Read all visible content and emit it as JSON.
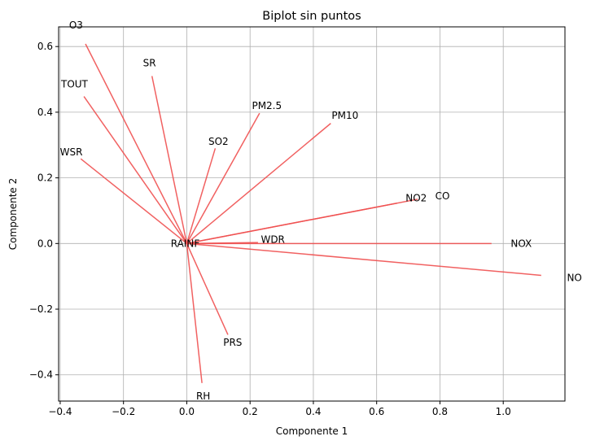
{
  "chart_data": {
    "type": "biplot",
    "title": "Biplot sin puntos",
    "xlabel": "Componente 1",
    "ylabel": "Componente 2",
    "xlim": [
      -0.405,
      1.195
    ],
    "ylim": [
      -0.48,
      0.66
    ],
    "xticks": [
      -0.4,
      -0.2,
      0.0,
      0.2,
      0.4,
      0.6,
      0.8,
      1.0
    ],
    "yticks": [
      -0.4,
      -0.2,
      0.0,
      0.2,
      0.4,
      0.6
    ],
    "xtick_labels": [
      "−0.4",
      "−0.2",
      "0.0",
      "0.2",
      "0.4",
      "0.6",
      "0.8",
      "1.0"
    ],
    "ytick_labels": [
      "−0.4",
      "−0.2",
      "0.0",
      "0.2",
      "0.4",
      "0.6"
    ],
    "grid": true,
    "arrow_color": "#f05050",
    "vectors": [
      {
        "name": "O3",
        "x": -0.32,
        "y": 0.608,
        "lx": -0.35,
        "ly": 0.665
      },
      {
        "name": "SR",
        "x": -0.11,
        "y": 0.51,
        "lx": -0.118,
        "ly": 0.55
      },
      {
        "name": "TOUT",
        "x": -0.325,
        "y": 0.448,
        "lx": -0.355,
        "ly": 0.485
      },
      {
        "name": "PM2.5",
        "x": 0.23,
        "y": 0.397,
        "lx": 0.253,
        "ly": 0.42
      },
      {
        "name": "PM10",
        "x": 0.455,
        "y": 0.366,
        "lx": 0.5,
        "ly": 0.39
      },
      {
        "name": "SO2",
        "x": 0.09,
        "y": 0.29,
        "lx": 0.1,
        "ly": 0.31
      },
      {
        "name": "WSR",
        "x": -0.335,
        "y": 0.258,
        "lx": -0.365,
        "ly": 0.278
      },
      {
        "name": "CO",
        "x": 0.73,
        "y": 0.135,
        "lx": 0.808,
        "ly": 0.145
      },
      {
        "name": "NO2",
        "x": 0.665,
        "y": 0.123,
        "lx": 0.725,
        "ly": 0.138
      },
      {
        "name": "WDR",
        "x": 0.225,
        "y": 0.003,
        "lx": 0.272,
        "ly": 0.012
      },
      {
        "name": "RAINF",
        "x": -0.005,
        "y": 0.0,
        "lx": -0.005,
        "ly": 0.0
      },
      {
        "name": "NOX",
        "x": 0.963,
        "y": 0.0,
        "lx": 1.057,
        "ly": 0.0
      },
      {
        "name": "NO",
        "x": 1.12,
        "y": -0.097,
        "lx": 1.225,
        "ly": -0.105
      },
      {
        "name": "PRS",
        "x": 0.13,
        "y": -0.278,
        "lx": 0.145,
        "ly": -0.302
      },
      {
        "name": "RH",
        "x": 0.048,
        "y": -0.425,
        "lx": 0.052,
        "ly": -0.465
      }
    ]
  }
}
